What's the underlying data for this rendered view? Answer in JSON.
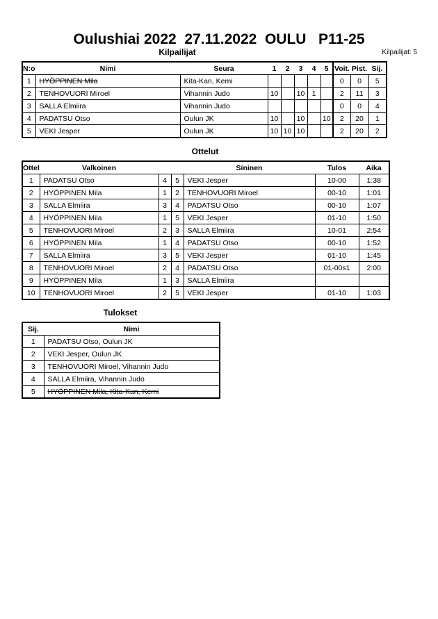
{
  "title": "Oulushiai 2022  27.11.2022  OULU   P11-25",
  "competitors": {
    "heading": "Kilpailijat",
    "count_label": "Kilpailijat: 5",
    "columns": [
      "N:o",
      "Nimi",
      "Seura",
      "1",
      "2",
      "3",
      "4",
      "5",
      "Voit.",
      "Pist.",
      "Sij."
    ],
    "rows": [
      {
        "no": "1",
        "name": "HYÖPPINEN Mila",
        "club": "Kita-Kan, Kemi",
        "scores": [
          "",
          "",
          "",
          "",
          ""
        ],
        "wins": "0",
        "points": "0",
        "rank": "5",
        "withdrawn": true
      },
      {
        "no": "2",
        "name": "TENHOVUORI Miroel",
        "club": "Vihannin Judo",
        "scores": [
          "10",
          "",
          "10",
          "1",
          ""
        ],
        "wins": "2",
        "points": "11",
        "rank": "3",
        "withdrawn": false
      },
      {
        "no": "3",
        "name": "SALLA Elmiira",
        "club": "Vihannin Judo",
        "scores": [
          "",
          "",
          "",
          "",
          ""
        ],
        "wins": "0",
        "points": "0",
        "rank": "4",
        "withdrawn": false
      },
      {
        "no": "4",
        "name": "PADATSU Otso",
        "club": "Oulun JK",
        "scores": [
          "10",
          "",
          "10",
          "",
          "10"
        ],
        "wins": "2",
        "points": "20",
        "rank": "1",
        "withdrawn": false
      },
      {
        "no": "5",
        "name": "VEKI Jesper",
        "club": "Oulun JK",
        "scores": [
          "10",
          "10",
          "10",
          "",
          ""
        ],
        "wins": "2",
        "points": "20",
        "rank": "2",
        "withdrawn": false
      }
    ]
  },
  "matches": {
    "heading": "Ottelut",
    "columns": [
      "Ottelu",
      "Valkoinen",
      "Sininen",
      "Tulos",
      "Aika"
    ],
    "rows": [
      {
        "no": "1",
        "white": "PADATSU Otso",
        "wn": "4",
        "bn": "5",
        "blue": "VEKI Jesper",
        "result": "10-00",
        "time": "1:38"
      },
      {
        "no": "2",
        "white": "HYÖPPINEN Mila",
        "wn": "1",
        "bn": "2",
        "blue": "TENHOVUORI Miroel",
        "result": "00-10",
        "time": "1:01"
      },
      {
        "no": "3",
        "white": "SALLA Elmiira",
        "wn": "3",
        "bn": "4",
        "blue": "PADATSU Otso",
        "result": "00-10",
        "time": "1:07"
      },
      {
        "no": "4",
        "white": "HYÖPPINEN Mila",
        "wn": "1",
        "bn": "5",
        "blue": "VEKI Jesper",
        "result": "01-10",
        "time": "1:50"
      },
      {
        "no": "5",
        "white": "TENHOVUORI Miroel",
        "wn": "2",
        "bn": "3",
        "blue": "SALLA Elmiira",
        "result": "10-01",
        "time": "2:54"
      },
      {
        "no": "6",
        "white": "HYÖPPINEN Mila",
        "wn": "1",
        "bn": "4",
        "blue": "PADATSU Otso",
        "result": "00-10",
        "time": "1:52"
      },
      {
        "no": "7",
        "white": "SALLA Elmiira",
        "wn": "3",
        "bn": "5",
        "blue": "VEKI Jesper",
        "result": "01-10",
        "time": "1:45"
      },
      {
        "no": "8",
        "white": "TENHOVUORI Miroel",
        "wn": "2",
        "bn": "4",
        "blue": "PADATSU Otso",
        "result": "01-00s1",
        "time": "2:00"
      },
      {
        "no": "9",
        "white": "HYÖPPINEN Mila",
        "wn": "1",
        "bn": "3",
        "blue": "SALLA Elmiira",
        "result": "",
        "time": ""
      },
      {
        "no": "10",
        "white": "TENHOVUORI Miroel",
        "wn": "2",
        "bn": "5",
        "blue": "VEKI Jesper",
        "result": "01-10",
        "time": "1:03"
      }
    ]
  },
  "results": {
    "heading": "Tulokset",
    "columns": [
      "Sij.",
      "Nimi"
    ],
    "rows": [
      {
        "rank": "1",
        "name": "PADATSU Otso, Oulun JK",
        "withdrawn": false
      },
      {
        "rank": "2",
        "name": "VEKI Jesper, Oulun JK",
        "withdrawn": false
      },
      {
        "rank": "3",
        "name": "TENHOVUORI Miroel, Vihannin Judo",
        "withdrawn": false
      },
      {
        "rank": "4",
        "name": "SALLA Elmiira, Vihannin Judo",
        "withdrawn": false
      },
      {
        "rank": "5",
        "name": "HYÖPPINEN Mila, Kita-Kan, Kemi",
        "withdrawn": true
      }
    ]
  }
}
